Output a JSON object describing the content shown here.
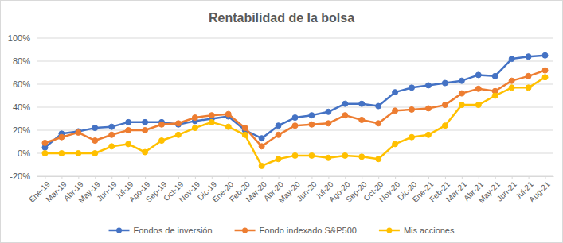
{
  "chart_data": {
    "type": "line",
    "title": "Rentabilidad de la bolsa",
    "categories": [
      "Ene-19",
      "Mar-19",
      "Abr-19",
      "May-19",
      "Jun-19",
      "Jul-19",
      "Ago-19",
      "Sep-19",
      "Oct-19",
      "Nov-19",
      "Dic-19",
      "Ene-20",
      "Feb-20",
      "Mar-20",
      "Abr-20",
      "May-20",
      "Jun-20",
      "Jul-20",
      "Ago-20",
      "Sep-20",
      "Oct-20",
      "Nov-20",
      "Dic-20",
      "Ene-21",
      "Feb-21",
      "Mar-21",
      "Abr-21",
      "May-21",
      "Jun-21",
      "Jul-21",
      "Aug-21"
    ],
    "series": [
      {
        "name": "Fondos de inversión",
        "color": "#4472c4",
        "values": [
          5,
          17,
          19,
          22,
          23,
          27,
          27,
          27,
          25,
          28,
          30,
          32,
          20,
          13,
          24,
          31,
          33,
          36,
          43,
          43,
          41,
          53,
          57,
          59,
          61,
          63,
          68,
          67,
          82,
          84,
          85
        ]
      },
      {
        "name": "Fondo indexado S&P500",
        "color": "#ed7d31",
        "values": [
          9,
          14,
          18,
          11,
          16,
          20,
          20,
          25,
          26,
          31,
          33,
          34,
          22,
          6,
          16,
          24,
          25,
          26,
          33,
          29,
          26,
          37,
          38,
          39,
          42,
          52,
          56,
          54,
          63,
          67,
          72
        ]
      },
      {
        "name": "Mis acciones",
        "color": "#ffc000",
        "values": [
          0,
          0,
          0,
          0,
          6,
          8,
          1,
          11,
          16,
          22,
          27,
          23,
          16,
          -11,
          -5,
          -2,
          -2,
          -4,
          -2,
          -3,
          -5,
          8,
          14,
          16,
          24,
          42,
          42,
          50,
          57,
          57,
          66
        ]
      }
    ],
    "ylim": [
      -20,
      100
    ],
    "yticks": [
      {
        "value": -20,
        "label": "-20%"
      },
      {
        "value": 0,
        "label": "0%"
      },
      {
        "value": 20,
        "label": "20%"
      },
      {
        "value": 40,
        "label": "40%"
      },
      {
        "value": 60,
        "label": "60%"
      },
      {
        "value": 80,
        "label": "80%"
      },
      {
        "value": 100,
        "label": "100%"
      }
    ],
    "grid": true,
    "legend": "bottom",
    "marker": "circle"
  }
}
